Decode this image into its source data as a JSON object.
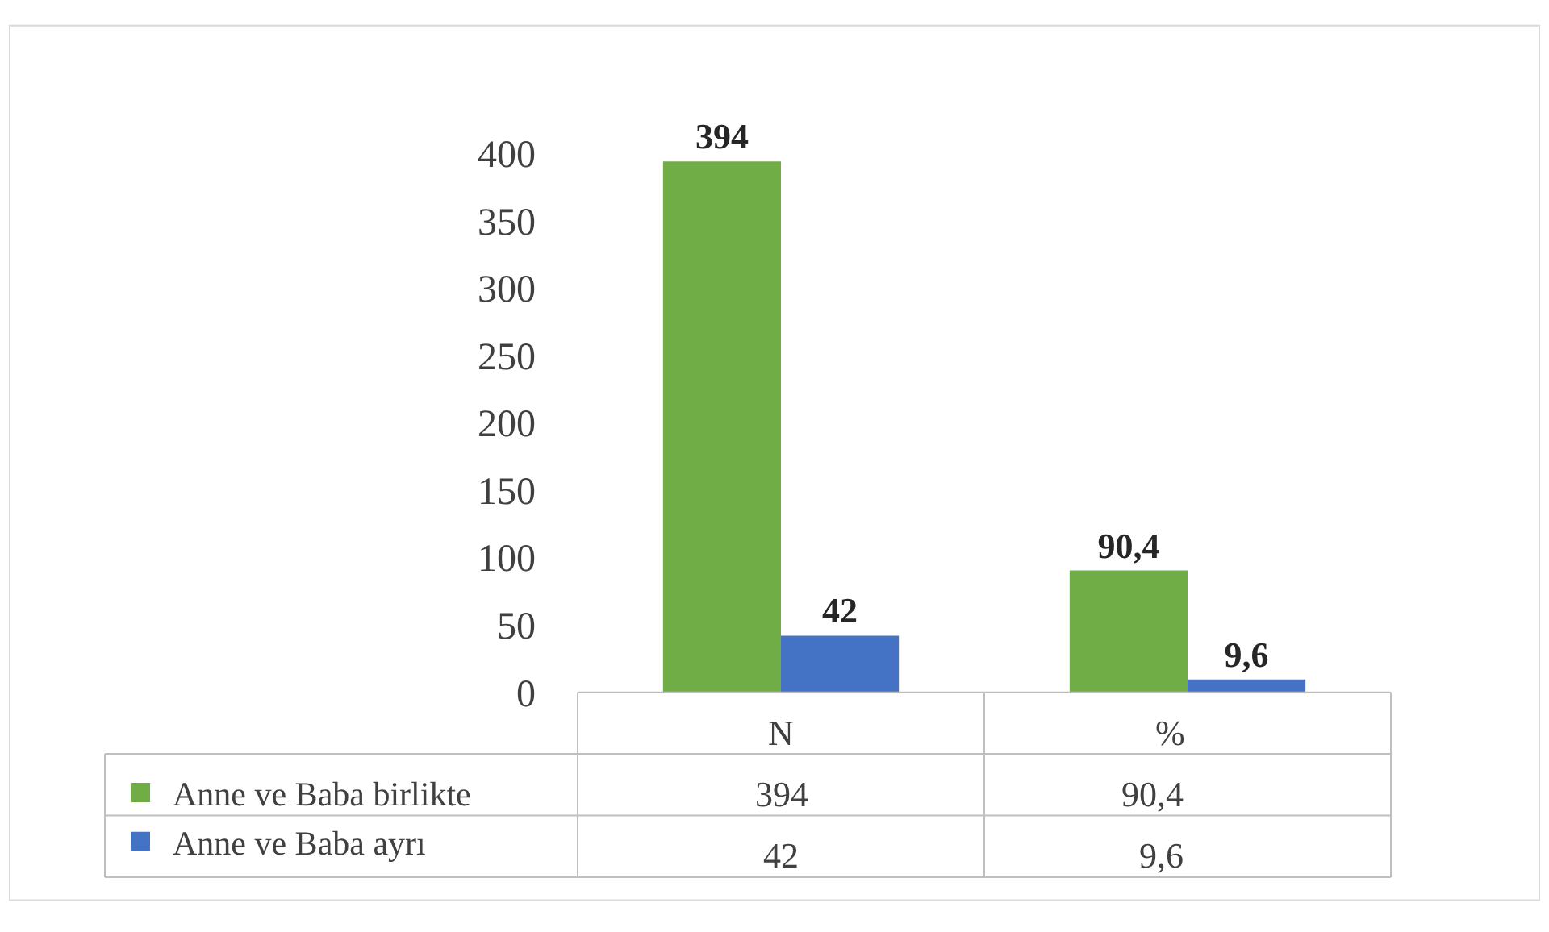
{
  "chart_data": {
    "type": "bar",
    "categories": [
      "N",
      "%"
    ],
    "series": [
      {
        "name": "Anne ve Baba birlikte",
        "color": "#70ad47",
        "values": [
          394,
          90.4
        ],
        "value_labels": [
          "394",
          "90,4"
        ]
      },
      {
        "name": "Anne ve Baba ayrı",
        "color": "#4472c4",
        "values": [
          42,
          9.6
        ],
        "value_labels": [
          "42",
          "9,6"
        ]
      }
    ],
    "ylim": [
      0,
      400
    ],
    "yticks": [
      0,
      50,
      100,
      150,
      200,
      250,
      300,
      350,
      400
    ],
    "legend": "bottom"
  }
}
